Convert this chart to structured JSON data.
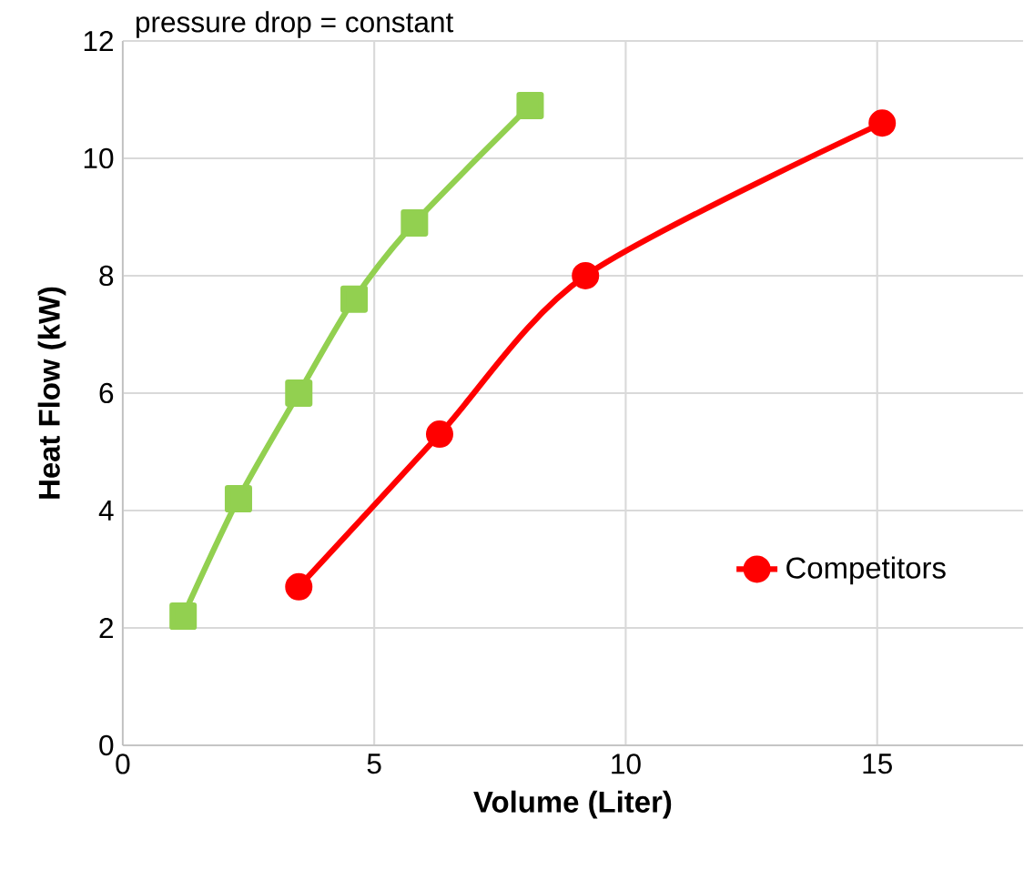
{
  "chart_data": {
    "type": "line",
    "xlabel": "Volume (Liter)",
    "ylabel": "Heat Flow (kW)",
    "annotations": [
      "pressure drop = constant"
    ],
    "series": [
      {
        "color": "#92d050",
        "marker": "square",
        "x": [
          1.2,
          2.3,
          3.5,
          4.6,
          5.8,
          8.1
        ],
        "values": [
          2.2,
          4.2,
          6.0,
          7.6,
          8.9,
          10.9
        ]
      },
      {
        "name": "Competitors",
        "color": "#ff0000",
        "marker": "circle",
        "x": [
          3.5,
          6.3,
          9.2,
          15.1
        ],
        "values": [
          2.7,
          5.3,
          8.0,
          10.6
        ]
      }
    ],
    "xlim": [
      0,
      17.9
    ],
    "ylim": [
      0,
      12
    ],
    "xticks": [
      0,
      5,
      10,
      15
    ],
    "yticks": [
      0,
      2,
      4,
      6,
      8,
      10,
      12
    ],
    "grid": true,
    "legend": "right"
  }
}
